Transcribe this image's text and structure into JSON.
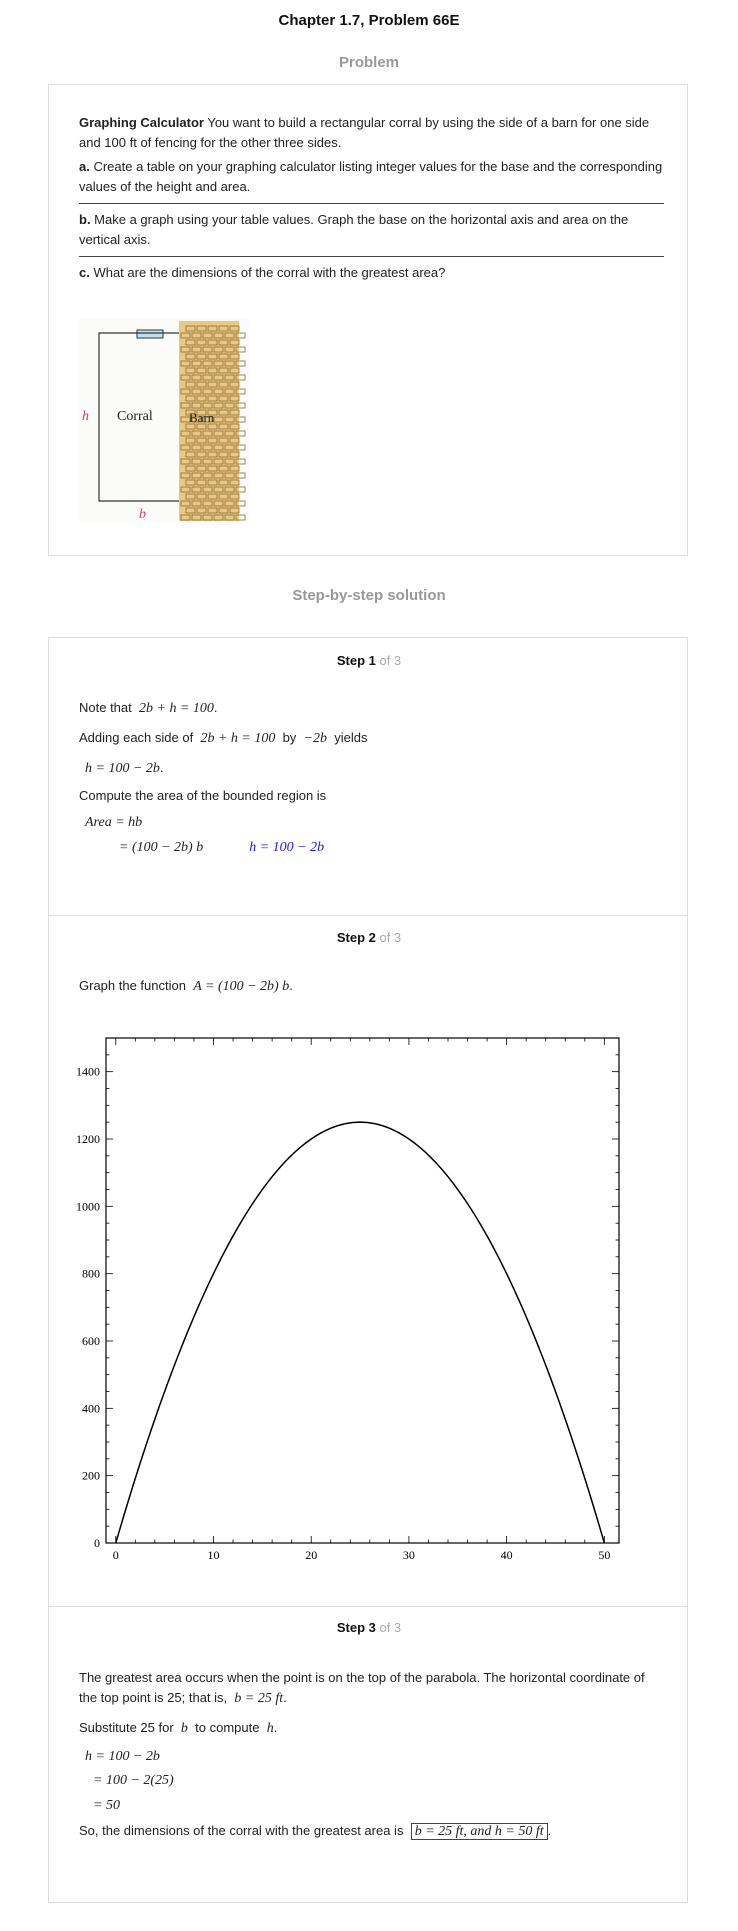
{
  "page_title": "Chapter 1.7, Problem 66E",
  "problem_heading": "Problem",
  "problem": {
    "lead_bold": "Graphing Calculator",
    "lead_text": " You want to build a rectangular corral by using the side of a barn for one side and 100 ft of fencing for the other three sides.",
    "a_label": "a.",
    "a_text": " Create a table on your graphing calculator listing integer values for the base and the corresponding values of the height and area.",
    "b_label": "b.",
    "b_text": " Make a graph using your table values. Graph the base on the horizontal axis and area on the vertical axis.",
    "c_label": "c.",
    "c_text": " What are the dimensions of the corral with the greatest area?",
    "figure": {
      "h_label": "h",
      "corral_label": "Corral",
      "barn_label": "Barn",
      "b_label": "b",
      "accent_color": "#d03a7a",
      "barn_color": "#e8c27a"
    }
  },
  "solution_heading": "Step-by-step solution",
  "step1": {
    "label": "Step 1",
    "of": " of 3",
    "l1_text": "Note that",
    "l1_math": "2b + h = 100",
    "l2_text": "Adding each side of",
    "l2_math": "2b + h = 100",
    "l2_by": "by",
    "l2_math2": "−2b",
    "l2_yields": "yields",
    "l3_math": "h = 100 − 2b",
    "l4_text": "Compute the area of the bounded region is",
    "l5_math": "Area = hb",
    "l6_math": "= (100 − 2b) b",
    "l6_note": "h = 100 − 2b"
  },
  "step2": {
    "label": "Step 2",
    "of": " of 3",
    "l1_text": "Graph the function",
    "l1_math": "A = (100 − 2b) b"
  },
  "chart_data": {
    "type": "line",
    "title": "",
    "xlabel": "",
    "ylabel": "",
    "xlim": [
      -1,
      51.5
    ],
    "ylim": [
      0,
      1500
    ],
    "xticks": [
      0,
      10,
      20,
      30,
      40,
      50
    ],
    "yticks": [
      0,
      200,
      400,
      600,
      800,
      1000,
      1200,
      1400
    ],
    "series": [
      {
        "function": "A = (100 - 2b) b",
        "x": [
          0,
          5,
          10,
          15,
          20,
          25,
          30,
          35,
          40,
          45,
          50
        ],
        "y": [
          0,
          450,
          800,
          1050,
          1200,
          1250,
          1200,
          1050,
          800,
          450,
          0
        ]
      }
    ],
    "grid": false
  },
  "step3": {
    "label": "Step 3",
    "of": " of 3",
    "p1": "The greatest area occurs when the point is on the top of the parabola. The horizontal coordinate of the top point is 25; that is,",
    "p1_math": "b = 25 ft",
    "l2_text": "Substitute 25 for",
    "l2_math": "b",
    "l2_text2": "to compute",
    "l2_math2": "h",
    "l3_math": "h = 100 − 2b",
    "l4_math": "= 100 − 2(25)",
    "l5_math": "= 50",
    "l6_text": "So, the dimensions of the corral with the greatest area is",
    "answer": "b = 25 ft, and h = 50 ft"
  }
}
